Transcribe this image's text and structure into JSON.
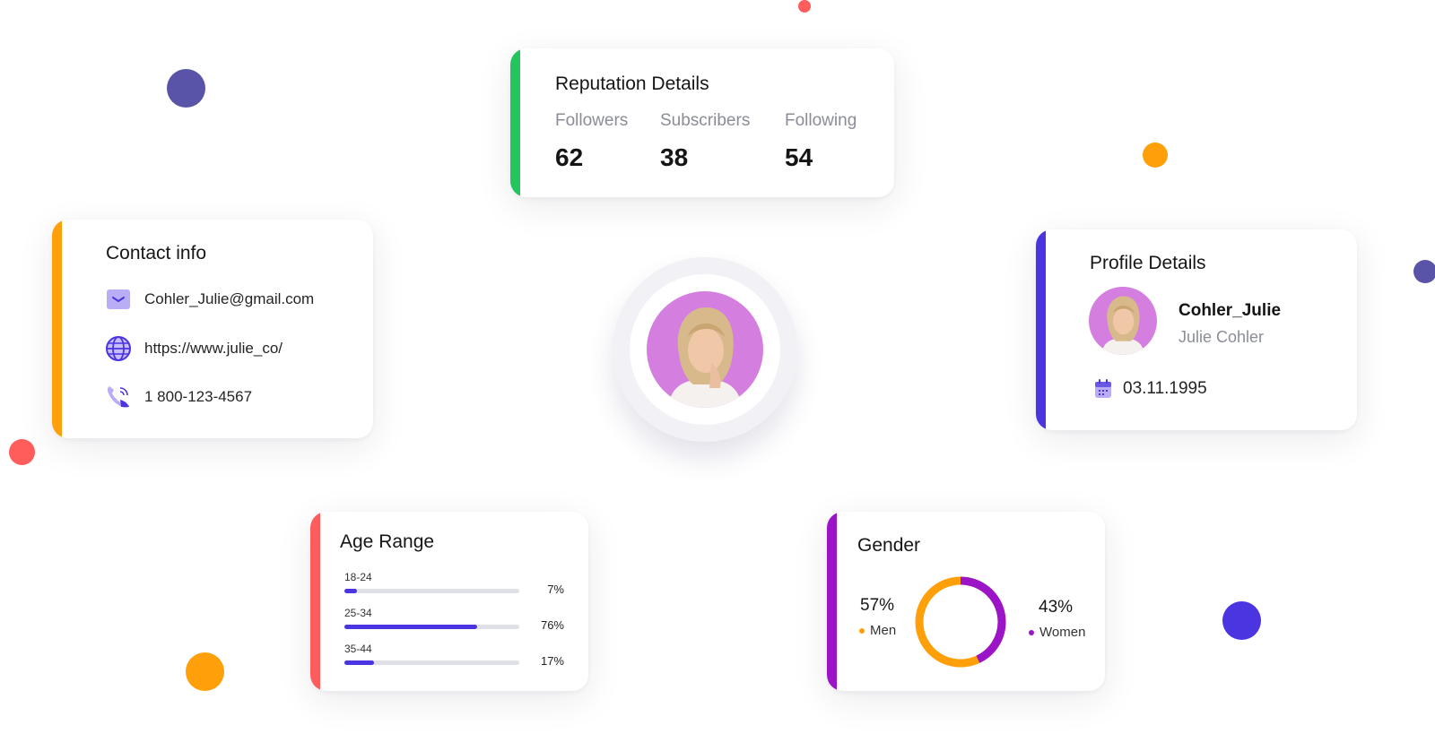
{
  "colors": {
    "green": "#22c55e",
    "orange": "#ff9f0a",
    "indigo": "#4a35e0",
    "coral": "#ff5c5c",
    "purple": "#9b14c8",
    "deep_indigo": "#5a54a8",
    "bar_track": "#dfe1e7"
  },
  "reputation": {
    "title": "Reputation Details",
    "stats": [
      {
        "label": "Followers",
        "value": "62"
      },
      {
        "label": "Subscribers",
        "value": "38"
      },
      {
        "label": "Following",
        "value": "54"
      }
    ]
  },
  "contact": {
    "title": "Contact info",
    "items": [
      {
        "icon": "mail-icon",
        "text": "Cohler_Julie@gmail.com"
      },
      {
        "icon": "globe-icon",
        "text": "https://www.julie_co/"
      },
      {
        "icon": "phone-icon",
        "text": "1 800-123-4567"
      }
    ]
  },
  "profile": {
    "title": "Profile Details",
    "username": "Cohler_Julie",
    "full_name": "Julie Cohler",
    "birthdate": "03.11.1995",
    "birthdate_icon": "calendar-icon"
  },
  "age": {
    "title": "Age Range",
    "ranges": [
      {
        "label": "18-24",
        "percent": 7,
        "percent_label": "7%"
      },
      {
        "label": "25-34",
        "percent": 76,
        "percent_label": "76%"
      },
      {
        "label": "35-44",
        "percent": 17,
        "percent_label": "17%"
      }
    ]
  },
  "gender": {
    "title": "Gender",
    "men": {
      "percent": 57,
      "percent_label": "57%",
      "label": "Men"
    },
    "women": {
      "percent": 43,
      "percent_label": "43%",
      "label": "Women"
    }
  }
}
